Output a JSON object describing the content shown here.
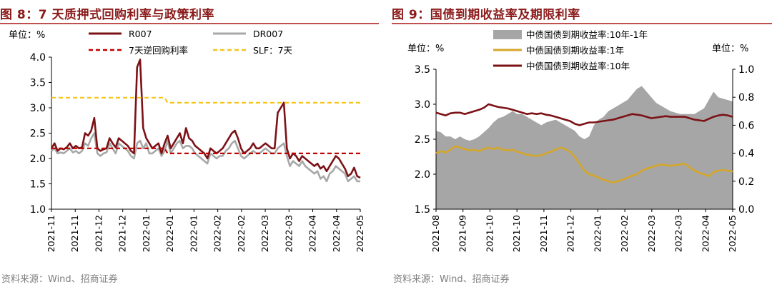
{
  "left": {
    "figure_title": "图 8：7 天质押式回购利率与政策利率",
    "source": "资料来源：Wind、招商证券",
    "colors": {
      "r007": "#7b1216",
      "dr007": "#a8a8a8",
      "reverse_repo": "#c00000",
      "slf": "#f5c518",
      "title": "#8b1a1a",
      "rule": "#c0504d"
    },
    "chart_data": {
      "type": "line",
      "unit_label": "单位：%",
      "ylim": [
        1.0,
        4.0
      ],
      "yticks": [
        "1.0",
        "1.5",
        "2.0",
        "2.5",
        "3.0",
        "3.5",
        "4.0"
      ],
      "x_tick_labels": [
        "2021-11",
        "2021-11",
        "2021-12",
        "2021-12",
        "2022-01",
        "2022-01",
        "2022-01",
        "2022-02",
        "2022-02",
        "2022-03",
        "2022-03",
        "2022-04",
        "2022-04",
        "2022-05"
      ],
      "legend": [
        "R007",
        "DR007",
        "7天逆回购利率",
        "SLF：7天"
      ],
      "series": [
        {
          "name": "R007",
          "values": [
            2.2,
            2.3,
            2.15,
            2.2,
            2.18,
            2.22,
            2.3,
            2.2,
            2.25,
            2.2,
            2.22,
            2.5,
            2.45,
            2.55,
            2.8,
            2.2,
            2.15,
            2.18,
            2.2,
            2.4,
            2.3,
            2.22,
            2.4,
            2.35,
            2.3,
            2.25,
            2.15,
            2.1,
            3.8,
            3.95,
            2.6,
            2.4,
            2.3,
            2.2,
            2.25,
            2.3,
            2.1,
            2.3,
            2.45,
            2.2,
            2.3,
            2.4,
            2.5,
            2.3,
            2.6,
            2.4,
            2.35,
            2.25,
            2.2,
            2.15,
            2.1,
            2.0,
            2.2,
            2.15,
            2.1,
            2.15,
            2.2,
            2.3,
            2.4,
            2.5,
            2.55,
            2.4,
            2.2,
            2.1,
            2.15,
            2.2,
            2.3,
            2.2,
            2.2,
            2.25,
            2.3,
            2.25,
            2.2,
            2.2,
            2.9,
            3.0,
            3.1,
            2.2,
            2.0,
            2.1,
            2.05,
            1.95,
            2.05,
            2.0,
            1.95,
            1.9,
            1.85,
            1.9,
            1.8,
            1.85,
            1.75,
            1.85,
            1.95,
            2.05,
            2.0,
            1.9,
            1.8,
            1.65,
            1.7,
            1.82,
            1.65,
            1.62
          ]
        },
        {
          "name": "DR007",
          "values": [
            2.15,
            2.2,
            2.1,
            2.12,
            2.1,
            2.15,
            2.2,
            2.12,
            2.15,
            2.1,
            2.15,
            2.3,
            2.25,
            2.4,
            2.5,
            2.1,
            2.05,
            2.1,
            2.12,
            2.3,
            2.2,
            2.1,
            2.3,
            2.25,
            2.2,
            2.15,
            2.05,
            2.0,
            2.3,
            2.35,
            2.2,
            2.3,
            2.1,
            2.1,
            2.15,
            2.2,
            2.05,
            2.15,
            2.35,
            2.1,
            2.2,
            2.3,
            2.35,
            2.2,
            2.25,
            2.25,
            2.2,
            2.1,
            2.05,
            2.0,
            1.95,
            1.9,
            2.1,
            2.05,
            2.0,
            2.05,
            2.05,
            2.15,
            2.2,
            2.3,
            2.35,
            2.2,
            2.05,
            2.0,
            2.05,
            2.1,
            2.15,
            2.1,
            2.1,
            2.15,
            2.2,
            2.15,
            2.1,
            2.1,
            2.2,
            2.25,
            2.3,
            2.05,
            1.85,
            1.95,
            1.9,
            1.85,
            1.95,
            1.85,
            1.8,
            1.75,
            1.7,
            1.75,
            1.6,
            1.65,
            1.55,
            1.7,
            1.75,
            1.85,
            1.8,
            1.75,
            1.7,
            1.55,
            1.6,
            1.65,
            1.55,
            1.55
          ]
        },
        {
          "name": "7天逆回购利率",
          "values": [
            2.2,
            2.2,
            2.2,
            2.2,
            2.2,
            2.2,
            2.2,
            2.2,
            2.2,
            2.2,
            2.2,
            2.2,
            2.2,
            2.2,
            2.2,
            2.2,
            2.2,
            2.2,
            2.2,
            2.2,
            2.2,
            2.2,
            2.2,
            2.2,
            2.2,
            2.2,
            2.2,
            2.2,
            2.2,
            2.2,
            2.2,
            2.2,
            2.2,
            2.2,
            2.2,
            2.2,
            2.2,
            2.2,
            2.1,
            2.1,
            2.1,
            2.1,
            2.1,
            2.1,
            2.1,
            2.1,
            2.1,
            2.1,
            2.1,
            2.1,
            2.1,
            2.1,
            2.1,
            2.1,
            2.1,
            2.1,
            2.1,
            2.1,
            2.1,
            2.1,
            2.1,
            2.1,
            2.1,
            2.1,
            2.1,
            2.1,
            2.1,
            2.1,
            2.1,
            2.1,
            2.1,
            2.1,
            2.1,
            2.1,
            2.1,
            2.1,
            2.1,
            2.1,
            2.1,
            2.1,
            2.1,
            2.1,
            2.1,
            2.1,
            2.1,
            2.1,
            2.1,
            2.1,
            2.1,
            2.1,
            2.1,
            2.1,
            2.1,
            2.1,
            2.1,
            2.1,
            2.1,
            2.1,
            2.1,
            2.1,
            2.1,
            2.1
          ]
        },
        {
          "name": "SLF：7天",
          "values": [
            3.2,
            3.2,
            3.2,
            3.2,
            3.2,
            3.2,
            3.2,
            3.2,
            3.2,
            3.2,
            3.2,
            3.2,
            3.2,
            3.2,
            3.2,
            3.2,
            3.2,
            3.2,
            3.2,
            3.2,
            3.2,
            3.2,
            3.2,
            3.2,
            3.2,
            3.2,
            3.2,
            3.2,
            3.2,
            3.2,
            3.2,
            3.2,
            3.2,
            3.2,
            3.2,
            3.2,
            3.2,
            3.2,
            3.1,
            3.1,
            3.1,
            3.1,
            3.1,
            3.1,
            3.1,
            3.1,
            3.1,
            3.1,
            3.1,
            3.1,
            3.1,
            3.1,
            3.1,
            3.1,
            3.1,
            3.1,
            3.1,
            3.1,
            3.1,
            3.1,
            3.1,
            3.1,
            3.1,
            3.1,
            3.1,
            3.1,
            3.1,
            3.1,
            3.1,
            3.1,
            3.1,
            3.1,
            3.1,
            3.1,
            3.1,
            3.1,
            3.1,
            3.1,
            3.1,
            3.1,
            3.1,
            3.1,
            3.1,
            3.1,
            3.1,
            3.1,
            3.1,
            3.1,
            3.1,
            3.1,
            3.1,
            3.1,
            3.1,
            3.1,
            3.1,
            3.1,
            3.1,
            3.1,
            3.1,
            3.1,
            3.1,
            3.1
          ]
        }
      ]
    }
  },
  "right": {
    "figure_title": "图 9：国债到期收益率及期限利率",
    "source": "资料来源：Wind、招商证券",
    "colors": {
      "spread": "#a6a6a6",
      "y1": "#d4a62a",
      "y10": "#7b1216",
      "title": "#8b1a1a",
      "rule": "#c0504d"
    },
    "chart_data": {
      "type": "line+area",
      "left_unit_label": "单位：%",
      "right_unit_label": "单位：%",
      "ylim_left": [
        1.5,
        3.5
      ],
      "yticks_left": [
        "1.5",
        "2.0",
        "2.5",
        "3.0",
        "3.5"
      ],
      "ylim_right": [
        0.0,
        1.0
      ],
      "yticks_right": [
        "0.0",
        "0.2",
        "0.4",
        "0.6",
        "0.8",
        "1.0"
      ],
      "x_tick_labels": [
        "2021-08",
        "2021-09",
        "2021-10",
        "2021-10",
        "2021-11",
        "2021-12",
        "2022-01",
        "2022-02",
        "2022-03",
        "2022-03",
        "2022-04",
        "2022-05"
      ],
      "legend": [
        "中债国债到期收益率:10年-1年",
        "中债国债到期收益率:1年",
        "中债国债到期收益率:10年"
      ],
      "series": [
        {
          "name": "中债国债到期收益率:10年-1年",
          "axis": "right",
          "values": [
            0.56,
            0.55,
            0.52,
            0.52,
            0.5,
            0.52,
            0.5,
            0.49,
            0.5,
            0.52,
            0.55,
            0.58,
            0.62,
            0.65,
            0.66,
            0.68,
            0.7,
            0.68,
            0.68,
            0.66,
            0.64,
            0.62,
            0.6,
            0.62,
            0.63,
            0.64,
            0.62,
            0.6,
            0.58,
            0.56,
            0.52,
            0.5,
            0.52,
            0.6,
            0.64,
            0.66,
            0.7,
            0.72,
            0.74,
            0.76,
            0.78,
            0.82,
            0.86,
            0.88,
            0.84,
            0.8,
            0.76,
            0.74,
            0.72,
            0.7,
            0.69,
            0.68,
            0.68,
            0.68,
            0.68,
            0.7,
            0.72,
            0.78,
            0.84,
            0.8,
            0.79,
            0.78,
            0.77
          ]
        },
        {
          "name": "中债国债到期收益率:1年",
          "axis": "left",
          "values": [
            2.3,
            2.33,
            2.31,
            2.35,
            2.4,
            2.38,
            2.36,
            2.34,
            2.35,
            2.33,
            2.36,
            2.38,
            2.36,
            2.38,
            2.35,
            2.34,
            2.35,
            2.32,
            2.3,
            2.28,
            2.27,
            2.26,
            2.27,
            2.3,
            2.32,
            2.35,
            2.38,
            2.36,
            2.32,
            2.25,
            2.15,
            2.05,
            2.0,
            1.98,
            1.95,
            1.92,
            1.9,
            1.88,
            1.9,
            1.92,
            1.95,
            1.98,
            2.0,
            2.05,
            2.08,
            2.1,
            2.12,
            2.14,
            2.13,
            2.12,
            2.13,
            2.14,
            2.15,
            2.1,
            2.05,
            2.02,
            2.0,
            1.97,
            2.03,
            2.05,
            2.06,
            2.05,
            2.04
          ]
        },
        {
          "name": "中债国债到期收益率:10年",
          "axis": "left",
          "values": [
            2.88,
            2.86,
            2.84,
            2.87,
            2.88,
            2.88,
            2.86,
            2.88,
            2.9,
            2.92,
            2.95,
            3.0,
            2.98,
            2.96,
            2.95,
            2.94,
            2.92,
            2.9,
            2.88,
            2.86,
            2.87,
            2.86,
            2.87,
            2.85,
            2.84,
            2.82,
            2.8,
            2.78,
            2.76,
            2.72,
            2.7,
            2.72,
            2.74,
            2.74,
            2.75,
            2.76,
            2.77,
            2.78,
            2.8,
            2.82,
            2.84,
            2.86,
            2.85,
            2.84,
            2.82,
            2.8,
            2.81,
            2.82,
            2.83,
            2.82,
            2.82,
            2.82,
            2.82,
            2.8,
            2.78,
            2.77,
            2.76,
            2.79,
            2.82,
            2.84,
            2.85,
            2.84,
            2.82
          ]
        }
      ]
    }
  }
}
